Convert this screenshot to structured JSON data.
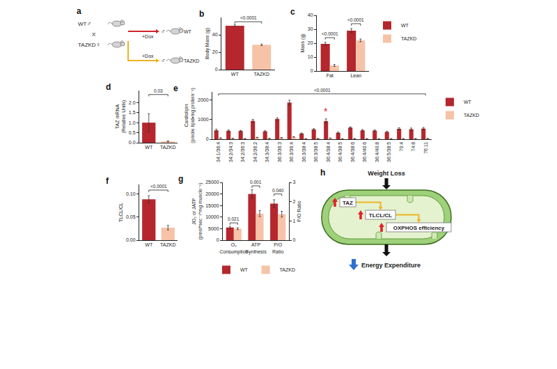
{
  "chart_data": [
    {
      "panel": "b",
      "type": "bar",
      "categories": [
        "WT",
        "TAZKD"
      ],
      "values": [
        50.5,
        28.5
      ],
      "errors": [
        1.3,
        0.9
      ],
      "colors": [
        "#b5272d",
        "#f6c3a8"
      ],
      "y_label": "Body Mass (g)",
      "ylim": [
        0,
        60
      ],
      "yticks": [
        0,
        20,
        40
      ],
      "annotations": [
        {
          "text": "<0.0001",
          "from": "WT",
          "to": "TAZKD",
          "y": 55
        }
      ]
    },
    {
      "panel": "c",
      "type": "bar",
      "categories": [
        "Fat",
        "Lean"
      ],
      "series": [
        {
          "name": "WT",
          "color": "#b5272d",
          "values": [
            19.5,
            29
          ],
          "errors": [
            1.2,
            1.5
          ]
        },
        {
          "name": "TAZKD",
          "color": "#f6c3a8",
          "values": [
            4,
            22
          ],
          "errors": [
            0.7,
            1.0
          ]
        }
      ],
      "y_label": "Mass (g)",
      "ylim": [
        0,
        40
      ],
      "yticks": [
        0,
        10,
        20,
        30,
        40
      ],
      "legend": "right",
      "annotations": [
        {
          "text": "<0.0001",
          "category": "Fat",
          "y": 24
        },
        {
          "text": "<0.0001",
          "category": "Lean",
          "y": 34
        }
      ]
    },
    {
      "panel": "d",
      "type": "bar",
      "categories": [
        "WT",
        "TAZKD"
      ],
      "values": [
        1.0,
        0.07
      ],
      "errors": [
        0.45,
        0.02
      ],
      "colors": [
        "#b5272d",
        "#f6c3a8"
      ],
      "y_label": [
        "TAZ mRNA",
        "(Relative Units)"
      ],
      "ylim": [
        0,
        2.6
      ],
      "yticks": [
        {
          "value": 0,
          "label": "0.0"
        },
        0.5,
        {
          "value": 1,
          "label": "1.0"
        },
        1.5,
        {
          "value": 2,
          "label": "2.0"
        }
      ],
      "annotations": [
        {
          "text": "0.03",
          "from": "WT",
          "to": "TAZKD",
          "y": 2.4
        }
      ]
    },
    {
      "panel": "e",
      "type": "bar",
      "categories": [
        "34:1/36:4",
        "34:2/34:3",
        "34:2/36:3",
        "34:2/36:2",
        "34:3/38:4",
        "36:3/36:3",
        "36:3/36:4",
        "36:3/38:4",
        "36:3/38:5",
        "36:4/38:4",
        "36:4/38:5",
        "36:4/38:6",
        "36:4/40:6",
        "36:4/40:8",
        "36:5/38:5",
        "70:4",
        "74:8",
        "76:11"
      ],
      "series": [
        {
          "name": "WT",
          "color": "#b5272d",
          "values": [
            450,
            430,
            420,
            930,
            400,
            1030,
            1860,
            290,
            500,
            920,
            330,
            590,
            450,
            440,
            370,
            530,
            510,
            540
          ],
          "errors": [
            60,
            40,
            30,
            70,
            35,
            60,
            120,
            25,
            40,
            110,
            30,
            35,
            45,
            30,
            30,
            50,
            60,
            55
          ]
        },
        {
          "name": "TAZKD",
          "color": "#f6c3a8",
          "values": [
            60,
            45,
            30,
            90,
            40,
            75,
            120,
            25,
            35,
            55,
            20,
            30,
            25,
            20,
            25,
            25,
            30,
            35
          ],
          "errors": [
            10,
            8,
            6,
            12,
            8,
            10,
            15,
            5,
            6,
            9,
            4,
            5,
            5,
            4,
            5,
            5,
            6,
            6
          ]
        }
      ],
      "y_label": [
        "Cardiolipin",
        "(pmole lipid•mg protein⁻¹)"
      ],
      "ylim": [
        0,
        2400
      ],
      "yticks": [
        0,
        1000,
        2000
      ],
      "legend": "right",
      "annotations": [
        {
          "text": "<0.0001",
          "from": "34:1/36:4",
          "to": "76:11",
          "y": 2300
        },
        {
          "text": "*",
          "at": "36:4/38:4",
          "y": 1060,
          "color": "#e8222a"
        }
      ]
    },
    {
      "panel": "f",
      "type": "bar",
      "categories": [
        "WT",
        "TAZKD"
      ],
      "values": [
        0.088,
        0.027
      ],
      "errors": [
        0.008,
        0.005
      ],
      "colors": [
        "#b5272d",
        "#f6c3a8"
      ],
      "y_label": "TLCL/CL",
      "ylim": [
        0,
        0.12
      ],
      "yticks": [
        {
          "value": 0,
          "label": "0.00"
        },
        0.05,
        {
          "value": 0.1,
          "label": "0.10"
        }
      ],
      "annotations": [
        {
          "text": "<0.0001",
          "from": "WT",
          "to": "TAZKD",
          "y": 0.108
        }
      ]
    },
    {
      "panel": "g",
      "type": "bar",
      "categories": [
        "O₂ Consumption",
        "ATP Synthesis",
        "P/O Ratio"
      ],
      "series": [
        {
          "name": "WT",
          "color": "#b5272d",
          "values": [
            5500,
            20000,
            null
          ],
          "errors": [
            500,
            1800,
            null
          ]
        },
        {
          "name": "TAZKD",
          "color": "#f6c3a8",
          "values": [
            5000,
            11500,
            null
          ],
          "errors": [
            400,
            1300,
            null
          ]
        },
        {
          "name": "WT",
          "color": "#b5272d",
          "axis": "y2",
          "values": [
            null,
            null,
            1.9
          ],
          "errors": [
            null,
            null,
            0.2
          ]
        },
        {
          "name": "TAZKD",
          "color": "#f6c3a8",
          "axis": "y2",
          "values": [
            null,
            null,
            1.35
          ],
          "errors": [
            null,
            null,
            0.15
          ]
        }
      ],
      "y_label": [
        "JO₂ or JATP",
        "(pmol*sec⁻¹*mg muscle⁻¹)"
      ],
      "y2_label": "P/O Ratio",
      "ylim": [
        0,
        25000
      ],
      "yticks": [
        0,
        5000,
        10000,
        15000,
        20000,
        25000
      ],
      "y2lim": [
        0,
        3
      ],
      "y2ticks": [
        0,
        1,
        2,
        3
      ],
      "legend": "bottom",
      "annotations": [
        {
          "text": "0.021",
          "category": "O₂ Consumption",
          "y": 7500
        },
        {
          "text": "0.001",
          "category": "ATP Synthesis",
          "y": 23500
        },
        {
          "text": "0.040",
          "category": "P/O Ratio",
          "y": 2.4,
          "axis": "y2"
        }
      ]
    }
  ],
  "diagrams": [
    {
      "panel": "a",
      "type": "breeding_scheme",
      "parents": [
        {
          "label": "WT",
          "sex": "♂"
        },
        {
          "label": "TAZKD",
          "sex": "♀"
        }
      ],
      "cross": "X",
      "offspring": [
        {
          "label": "WT",
          "sex": "♂",
          "treatment": "+Dox",
          "arrow_color": "#d0242b"
        },
        {
          "label": "TAZKD",
          "sex": "♂",
          "treatment": "+Dox",
          "arrow_color": "#f0b323"
        }
      ]
    },
    {
      "panel": "h",
      "type": "pathway",
      "top": "Weight Loss",
      "steps": [
        "TAZ",
        "TLCL/CL",
        "OXPHOS efficiency"
      ],
      "bottom": "Energy Expenditure"
    }
  ]
}
